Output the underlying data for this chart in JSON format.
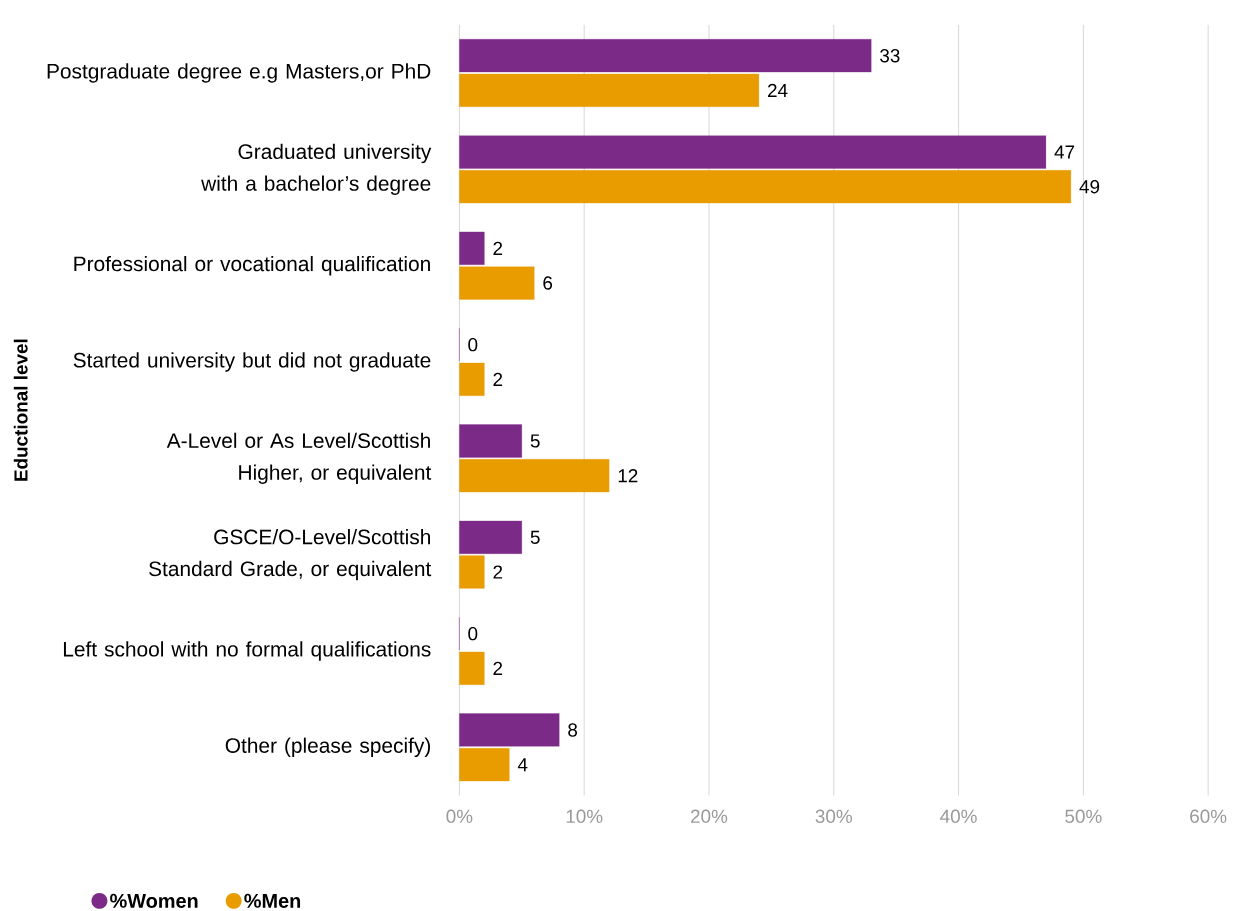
{
  "chart_data": {
    "type": "bar",
    "orientation": "horizontal",
    "ylabel": "Eductional level",
    "categories": [
      "Postgraduate degree e.g Masters,or PhD",
      "Graduated university with a bachelor’s degree",
      "Professional or vocational qualification",
      "Started university but did not graduate",
      "A-Level or As Level/Scottish Higher, or equivalent",
      "GSCE/O-Level/Scottish Standard Grade, or equivalent",
      "Left school with no formal qualifications",
      "Other (please specify)"
    ],
    "series": [
      {
        "name": "%Women",
        "color": "#7b2a87",
        "values": [
          33,
          47,
          2,
          0,
          5,
          5,
          0,
          8
        ]
      },
      {
        "name": "%Men",
        "color": "#e89c00",
        "values": [
          24,
          49,
          6,
          2,
          12,
          2,
          2,
          4
        ]
      }
    ],
    "xlim": [
      0,
      60
    ],
    "xticks": [
      {
        "value": 0,
        "label": "0%"
      },
      {
        "value": 10,
        "label": "10%"
      },
      {
        "value": 20,
        "label": "20%"
      },
      {
        "value": 30,
        "label": "30%"
      },
      {
        "value": 40,
        "label": "40%"
      },
      {
        "value": 50,
        "label": "50%"
      },
      {
        "value": 60,
        "label": "60%"
      }
    ],
    "grid": "x",
    "data_labels": true,
    "legend": "bottom left"
  }
}
